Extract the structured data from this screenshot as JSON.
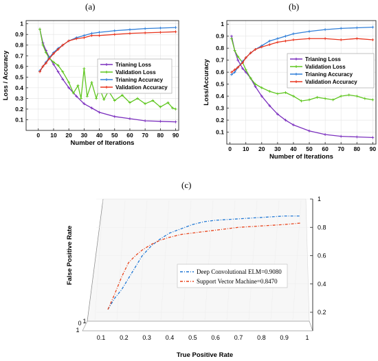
{
  "panel_labels": {
    "a": "(a)",
    "b": "(b)",
    "c": "(c)"
  },
  "chart_data": [
    {
      "id": "a",
      "type": "line",
      "xlabel": "Number of Iterations",
      "ylabel": "Loss / Accuracy",
      "xlim": [
        -8,
        92
      ],
      "ylim": [
        0,
        1.03
      ],
      "xticks": [
        "0",
        "10",
        "20",
        "30",
        "40",
        "50",
        "60",
        "70",
        "80",
        "90"
      ],
      "yticks": [
        "0.1",
        "0.2",
        "0.3",
        "0.4",
        "0.5",
        "0.6",
        "0.7",
        "0.8",
        "0.9",
        "1"
      ],
      "grid": true,
      "legend_position": "center-right",
      "series": [
        {
          "name": "Trianing Loss",
          "color": "#7b2fbe",
          "x": [
            1,
            3,
            5,
            7,
            10,
            13,
            16,
            20,
            25,
            30,
            35,
            40,
            50,
            60,
            70,
            80,
            90
          ],
          "y": [
            0.95,
            0.82,
            0.75,
            0.69,
            0.62,
            0.55,
            0.48,
            0.4,
            0.32,
            0.25,
            0.21,
            0.17,
            0.13,
            0.11,
            0.09,
            0.085,
            0.08
          ]
        },
        {
          "name": "Validation Loss",
          "color": "#5ec61e",
          "x": [
            1,
            3,
            5,
            7,
            10,
            13,
            16,
            20,
            23,
            26,
            28,
            30,
            32,
            35,
            38,
            40,
            43,
            46,
            50,
            55,
            60,
            65,
            70,
            75,
            80,
            85,
            88,
            90
          ],
          "y": [
            0.95,
            0.8,
            0.73,
            0.68,
            0.64,
            0.61,
            0.55,
            0.45,
            0.35,
            0.42,
            0.3,
            0.58,
            0.32,
            0.45,
            0.3,
            0.4,
            0.29,
            0.37,
            0.28,
            0.33,
            0.26,
            0.3,
            0.25,
            0.28,
            0.22,
            0.26,
            0.21,
            0.2
          ]
        },
        {
          "name": "Trianing Accuracy",
          "color": "#2f7ed8",
          "x": [
            1,
            3,
            5,
            7,
            10,
            13,
            16,
            20,
            25,
            30,
            35,
            40,
            50,
            60,
            70,
            80,
            90
          ],
          "y": [
            0.56,
            0.6,
            0.64,
            0.68,
            0.73,
            0.77,
            0.8,
            0.84,
            0.87,
            0.89,
            0.91,
            0.92,
            0.935,
            0.945,
            0.955,
            0.96,
            0.965
          ]
        },
        {
          "name": "Validation Accuracy",
          "color": "#e8331c",
          "x": [
            1,
            3,
            5,
            7,
            10,
            13,
            16,
            20,
            25,
            30,
            35,
            40,
            50,
            60,
            70,
            80,
            90
          ],
          "y": [
            0.55,
            0.6,
            0.63,
            0.67,
            0.72,
            0.76,
            0.8,
            0.84,
            0.86,
            0.87,
            0.89,
            0.89,
            0.9,
            0.91,
            0.915,
            0.92,
            0.925
          ]
        }
      ]
    },
    {
      "id": "b",
      "type": "line",
      "xlabel": "Number of Iterations",
      "ylabel": "Loss/Accuracy",
      "xlim": [
        -2,
        92
      ],
      "ylim": [
        0,
        1.03
      ],
      "xticks": [
        "0",
        "10",
        "20",
        "30",
        "40",
        "50",
        "60",
        "70",
        "80",
        "90"
      ],
      "yticks": [
        "0.1",
        "0.2",
        "0.3",
        "0.4",
        "0.5",
        "0.6",
        "0.7",
        "0.8",
        "0.9",
        "1"
      ],
      "grid": true,
      "legend_position": "center-right",
      "series": [
        {
          "name": "Trianing Loss",
          "color": "#7b2fbe",
          "x": [
            1,
            3,
            5,
            8,
            10,
            13,
            16,
            20,
            25,
            30,
            35,
            40,
            50,
            60,
            70,
            80,
            90
          ],
          "y": [
            0.9,
            0.78,
            0.7,
            0.63,
            0.6,
            0.55,
            0.48,
            0.4,
            0.32,
            0.25,
            0.2,
            0.16,
            0.11,
            0.08,
            0.065,
            0.06,
            0.055
          ]
        },
        {
          "name": "Validation Loss",
          "color": "#5ec61e",
          "x": [
            1,
            3,
            5,
            8,
            10,
            13,
            16,
            20,
            25,
            30,
            35,
            40,
            45,
            50,
            55,
            60,
            65,
            70,
            75,
            80,
            85,
            90
          ],
          "y": [
            0.88,
            0.78,
            0.73,
            0.68,
            0.62,
            0.55,
            0.5,
            0.47,
            0.44,
            0.42,
            0.43,
            0.4,
            0.36,
            0.37,
            0.39,
            0.38,
            0.37,
            0.4,
            0.41,
            0.4,
            0.38,
            0.37
          ]
        },
        {
          "name": "Trianing Accuracy",
          "color": "#2f7ed8",
          "x": [
            1,
            3,
            5,
            8,
            10,
            13,
            16,
            20,
            25,
            30,
            35,
            40,
            50,
            60,
            70,
            80,
            90
          ],
          "y": [
            0.58,
            0.6,
            0.64,
            0.69,
            0.72,
            0.76,
            0.79,
            0.82,
            0.86,
            0.88,
            0.9,
            0.92,
            0.94,
            0.955,
            0.965,
            0.97,
            0.975
          ]
        },
        {
          "name": "Validation Accuracy",
          "color": "#e8331c",
          "x": [
            1,
            3,
            5,
            8,
            10,
            13,
            16,
            20,
            25,
            30,
            35,
            40,
            50,
            60,
            70,
            80,
            90
          ],
          "y": [
            0.6,
            0.62,
            0.64,
            0.68,
            0.72,
            0.76,
            0.79,
            0.81,
            0.83,
            0.85,
            0.86,
            0.87,
            0.88,
            0.88,
            0.87,
            0.88,
            0.87
          ]
        }
      ]
    },
    {
      "id": "c",
      "type": "line",
      "xlabel": "True Positive Rate",
      "ylabel": "False Positive Rate",
      "xticks": [
        "0.1",
        "0.2",
        "0.3",
        "0.4",
        "0.5",
        "0.6",
        "0.7",
        "0.8",
        "0.9",
        "1"
      ],
      "yticks": [
        "0.2",
        "0.4",
        "0.6",
        "0.8",
        "1"
      ],
      "corner_labels": [
        "0",
        "1",
        "1"
      ],
      "legend_position": "center-right",
      "series": [
        {
          "name": "Deep Convolutional ELM=0.9080",
          "color": "#1f77d4",
          "x": [
            0.13,
            0.16,
            0.19,
            0.22,
            0.25,
            0.28,
            0.32,
            0.36,
            0.4,
            0.45,
            0.5,
            0.55,
            0.6,
            0.7,
            0.8,
            0.9,
            0.97
          ],
          "y": [
            0.22,
            0.3,
            0.36,
            0.44,
            0.52,
            0.6,
            0.67,
            0.72,
            0.76,
            0.79,
            0.82,
            0.84,
            0.85,
            0.86,
            0.87,
            0.88,
            0.88
          ]
        },
        {
          "name": "Support Vector Machine=0.8470",
          "color": "#e8441c",
          "x": [
            0.13,
            0.16,
            0.19,
            0.22,
            0.25,
            0.28,
            0.32,
            0.36,
            0.4,
            0.45,
            0.5,
            0.55,
            0.6,
            0.7,
            0.8,
            0.9,
            0.97
          ],
          "y": [
            0.22,
            0.33,
            0.45,
            0.55,
            0.6,
            0.64,
            0.68,
            0.71,
            0.73,
            0.75,
            0.76,
            0.77,
            0.78,
            0.8,
            0.81,
            0.82,
            0.83
          ]
        }
      ]
    }
  ]
}
